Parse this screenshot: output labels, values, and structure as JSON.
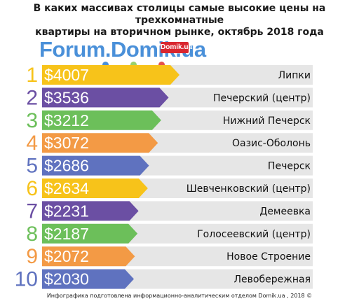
{
  "header": {
    "title_line1": "В каких массивах столицы самые высокие цены на трехкомнатные",
    "title_line2": "квартиры на вторичном рынке, октябрь 2018 года"
  },
  "brand": {
    "name": "Forum.Domik.ua",
    "badge": "Domik.ua"
  },
  "footer": {
    "text": "Инфографика подготовлена информационно-аналитическим отделом Domik.ua , 2018 ©"
  },
  "chart_data": {
    "type": "bar",
    "orientation": "horizontal",
    "title": "В каких массивах столицы самые высокие цены на трехкомнатные квартиры на вторичном рынке, октябрь 2018 года",
    "categories": [
      "Липки",
      "Печерский (центр)",
      "Нижний Печерск",
      "Оазис-Оболонь",
      "Печерск",
      "Шевченковский (центр)",
      "Демеевка",
      "Голосеевский (центр)",
      "Новое Строение",
      "Левобережная"
    ],
    "ranks": [
      "1",
      "2",
      "3",
      "4",
      "5",
      "6",
      "7",
      "8",
      "9",
      "10"
    ],
    "values": [
      4007,
      3536,
      3212,
      3072,
      2686,
      2634,
      2231,
      2187,
      2072,
      2030
    ],
    "value_labels": [
      "$4007",
      "$3536",
      "$3212",
      "$3072",
      "$2686",
      "$2634",
      "$2231",
      "$2187",
      "$2072",
      "$2030"
    ],
    "colors": [
      "#f7c31a",
      "#6b4fa3",
      "#6cbf5a",
      "#f39a45",
      "#5f72bf",
      "#f7c31a",
      "#6b4fa3",
      "#6cbf5a",
      "#f39a45",
      "#5f72bf"
    ],
    "row_background": "#e6e6e6",
    "unit": "USD"
  }
}
